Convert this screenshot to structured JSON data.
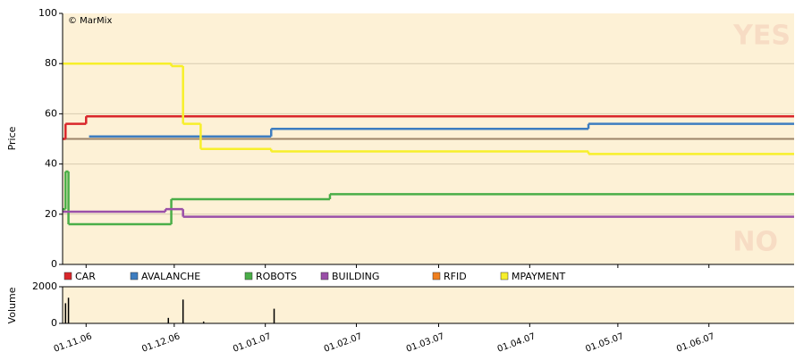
{
  "chart_data": [
    {
      "type": "line",
      "y_label": "Price",
      "watermark": "© MarMix",
      "annotations": [
        "YES",
        "NO"
      ],
      "xlim": [
        "24.10.06",
        "30.06.07"
      ],
      "ylim": [
        0,
        100
      ],
      "yticks": [
        0,
        20,
        40,
        60,
        80,
        100
      ],
      "grid": true,
      "background": "#fdf1d6",
      "reference_line": {
        "value": 50,
        "color": "#9c8468"
      },
      "series": [
        {
          "name": "CAR",
          "color": "#d9262b",
          "x": [
            "24.10.06",
            "25.10.06",
            "01.11.06",
            "30.06.07"
          ],
          "values": [
            50,
            56,
            59,
            59
          ]
        },
        {
          "name": "AVALANCHE",
          "color": "#3d7dc0",
          "x": [
            "02.11.06",
            "03.01.07",
            "21.04.07",
            "30.06.07"
          ],
          "values": [
            51,
            54,
            56,
            56
          ]
        },
        {
          "name": "ROBOTS",
          "color": "#4aae48",
          "x": [
            "24.10.06",
            "25.10.06",
            "26.10.06",
            "30.11.06",
            "23.01.07",
            "30.06.07"
          ],
          "values": [
            22,
            37,
            16,
            26,
            28,
            28
          ]
        },
        {
          "name": "BUILDING",
          "color": "#9a4fa8",
          "x": [
            "24.10.06",
            "28.11.06",
            "04.12.06",
            "30.06.07"
          ],
          "values": [
            21,
            22,
            19,
            19
          ]
        },
        {
          "name": "RFID",
          "color": "#f07f1e",
          "x": [],
          "values": []
        },
        {
          "name": "MPAYMENT",
          "color": "#f7ef2a",
          "x": [
            "24.10.06",
            "30.11.06",
            "04.12.06",
            "10.12.06",
            "03.01.07",
            "21.04.07",
            "30.06.07"
          ],
          "values": [
            80,
            79,
            56,
            46,
            45,
            44,
            44
          ]
        }
      ]
    },
    {
      "type": "bar",
      "y_label": "Volume",
      "xlim": [
        "24.10.06",
        "30.06.07"
      ],
      "xticks": [
        "01.11.06",
        "01.12.06",
        "01.01.07",
        "01.02.07",
        "01.03.07",
        "01.04.07",
        "01.05.07",
        "01.06.07"
      ],
      "ylim": [
        0,
        2000
      ],
      "yticks": [
        0,
        2000
      ],
      "background": "#fdf1d6",
      "color": "#000000",
      "x": [
        "25.10.06",
        "26.10.06",
        "29.11.06",
        "04.12.06",
        "11.12.06",
        "04.01.07"
      ],
      "values": [
        1100,
        1400,
        300,
        1300,
        100,
        800
      ]
    }
  ]
}
